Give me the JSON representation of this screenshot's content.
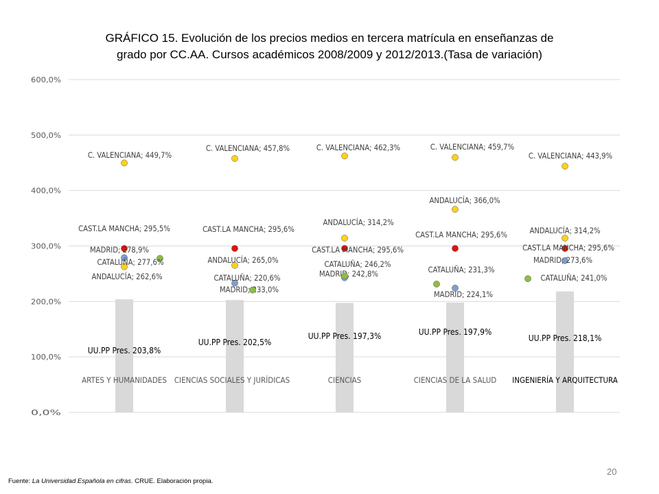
{
  "title": {
    "line1": "GRÁFICO 15.  Evolución de los precios medios en tercera matrícula en enseñanzas de",
    "line2": "grado por CC.AA. Cursos académicos 2008/2009 y 2012/2013.(Tasa de variación)"
  },
  "source": {
    "prefix": "Fuente: ",
    "work": "La Universidad Española en cifras",
    "suffix": ". CRUE. Elaboración propia."
  },
  "page_number": "20",
  "colors": {
    "bar": "#d9d9d9",
    "grid": "#d9d9d9",
    "axis_text": "#595959",
    "label_text": "#404040",
    "bar_label_text": "#000000",
    "valenciana": "#ffd11a",
    "andalucia": "#ffd11a",
    "cast_la_mancha": "#e3120b",
    "madrid": "#7f9fd0",
    "cataluna": "#8fbc45"
  },
  "chart_data": {
    "type": "bar",
    "subtype": "bar with overlaid scatter points",
    "ylim": [
      0,
      600
    ],
    "yticks": [
      0,
      100,
      200,
      300,
      400,
      500,
      600
    ],
    "ytick_labels": [
      "0,0%",
      "100,0%",
      "200,0%",
      "300,0%",
      "400,0%",
      "500,0%",
      "600,0%"
    ],
    "grid": true,
    "categories": [
      "ARTES Y HUMANIDADES",
      "CIENCIAS SOCIALES Y JURÍDICAS",
      "CIENCIAS",
      "CIENCIAS DE LA SALUD",
      "INGENIERÍA Y ARQUITECTURA"
    ],
    "bar_series": {
      "name": "UU.PP Pres.",
      "values": [
        203.8,
        202.5,
        197.3,
        197.9,
        218.1
      ],
      "labels": [
        "UU.PP Pres. 203,8%",
        "UU.PP Pres. 202,5%",
        "UU.PP Pres.  197,3%",
        "UU.PP Pres. 197,9%",
        "UU.PP Pres. 218,1%"
      ]
    },
    "point_series": [
      {
        "name": "C. VALENCIANA",
        "color_key": "valenciana",
        "values": [
          449.7,
          457.8,
          462.3,
          459.7,
          443.9
        ],
        "labels": [
          "C. VALENCIANA; 449,7%",
          "C. VALENCIANA; 457,8%",
          "C. VALENCIANA; 462,3%",
          "C. VALENCIANA; 459,7%",
          "C. VALENCIANA; 443,9%"
        ]
      },
      {
        "name": "ANDALUCÍA",
        "color_key": "andalucia",
        "values": [
          262.6,
          265.0,
          314.2,
          366.0,
          314.2
        ],
        "labels": [
          "ANDALUCÍA; 262,6%",
          "ANDALUCÍA; 265,0%",
          "ANDALUCÍA; 314,2%",
          "ANDALUCÍA; 366,0%",
          "ANDALUCÍA; 314,2%"
        ]
      },
      {
        "name": "CAST.LA MANCHA",
        "color_key": "cast_la_mancha",
        "values": [
          295.5,
          295.6,
          295.6,
          295.6,
          295.6
        ],
        "labels": [
          "CAST.LA MANCHA; 295,5%",
          "CAST.LA MANCHA; 295,6%",
          "CAST.LA MANCHA; 295,6%",
          "CAST.LA MANCHA; 295,6%",
          "CAST.LA MANCHA; 295,6%"
        ]
      },
      {
        "name": "MADRID",
        "color_key": "madrid",
        "values": [
          278.9,
          233.0,
          242.8,
          224.1,
          273.6
        ],
        "labels": [
          "MADRID; 278,9%",
          "MADRID; 233,0%",
          "MADRID; 242,8%",
          "MADRID; 224,1%",
          "MADRID; 273,6%"
        ]
      },
      {
        "name": "CATALUÑA",
        "color_key": "cataluna",
        "values": [
          277.6,
          220.6,
          246.2,
          231.3,
          241.0
        ],
        "labels": [
          "CATALUÑA; 277,6%",
          "CATALUÑA; 220,6%",
          "CATALUÑA; 246,2%",
          "CATALUÑA; 231,3%",
          "CATALUÑA; 241,0%"
        ]
      }
    ]
  }
}
